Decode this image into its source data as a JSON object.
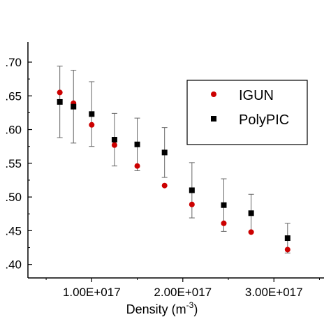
{
  "chart_data": {
    "type": "scatter",
    "title": "",
    "xlabel": "Density (m",
    "xlabel_exponent": "-3",
    "xlabel_close": ")",
    "ylabel": "",
    "xlim": [
      3e+16,
      3.55e+17
    ],
    "ylim": [
      0.38,
      0.73
    ],
    "x_ticks": [
      {
        "value": 1e+17,
        "label": "1.00E+017"
      },
      {
        "value": 2e+17,
        "label": "2.00E+017"
      },
      {
        "value": 3e+17,
        "label": "3.00E+017"
      }
    ],
    "y_ticks": [
      {
        "value": 0.4,
        "label": ".40"
      },
      {
        "value": 0.45,
        "label": ".45"
      },
      {
        "value": 0.5,
        "label": ".50"
      },
      {
        "value": 0.55,
        "label": ".55"
      },
      {
        "value": 0.6,
        "label": ".60"
      },
      {
        "value": 0.65,
        "label": ".65"
      },
      {
        "value": 0.7,
        "label": ".70"
      }
    ],
    "legend": {
      "position": "top-right"
    },
    "series": [
      {
        "name": "IGUN",
        "color": "#cc0000",
        "marker": "circle",
        "x": [
          6.5e+16,
          8e+16,
          1e+17,
          1.25e+17,
          1.5e+17,
          1.8e+17,
          2.1e+17,
          2.45e+17,
          2.75e+17,
          3.15e+17
        ],
        "y": [
          0.655,
          0.639,
          0.607,
          0.577,
          0.546,
          0.517,
          0.489,
          0.461,
          0.448,
          0.422
        ]
      },
      {
        "name": "PolyPIC",
        "color": "#000000",
        "marker": "square",
        "x": [
          6.5e+16,
          8e+16,
          1e+17,
          1.25e+17,
          1.5e+17,
          1.8e+17,
          2.1e+17,
          2.45e+17,
          2.75e+17,
          3.15e+17
        ],
        "y": [
          0.641,
          0.634,
          0.623,
          0.585,
          0.578,
          0.566,
          0.51,
          0.488,
          0.476,
          0.439
        ],
        "error": [
          0.053,
          0.054,
          0.048,
          0.039,
          0.039,
          0.037,
          0.041,
          0.039,
          0.028,
          0.022
        ]
      }
    ]
  }
}
